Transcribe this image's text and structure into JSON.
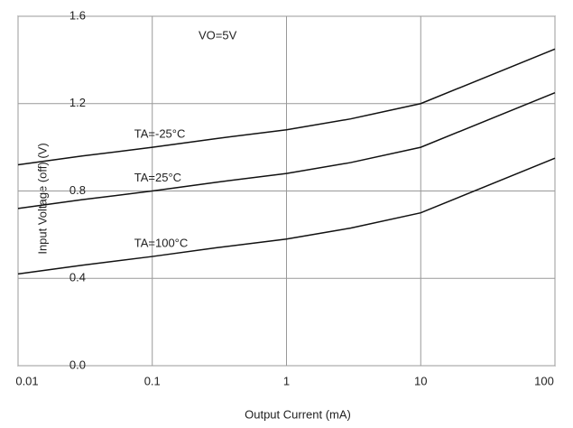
{
  "chart_data": {
    "type": "line",
    "xlabel": "Output Current (mA)",
    "ylabel": "Input Voltage (off) (V)",
    "annotations": [
      "VO=5V"
    ],
    "x": [
      0.01,
      0.03,
      0.1,
      0.3,
      1,
      3,
      10,
      100
    ],
    "series": [
      {
        "name": "TA=-25°C",
        "color": "#111111",
        "values": [
          0.92,
          0.96,
          1.0,
          1.04,
          1.08,
          1.13,
          1.2,
          1.45
        ]
      },
      {
        "name": "TA=25°C",
        "color": "#111111",
        "values": [
          0.72,
          0.76,
          0.8,
          0.84,
          0.88,
          0.93,
          1.0,
          1.25
        ]
      },
      {
        "name": "TA=100°C",
        "color": "#111111",
        "values": [
          0.42,
          0.46,
          0.5,
          0.54,
          0.58,
          0.63,
          0.7,
          0.95
        ]
      }
    ],
    "xlim": [
      0.01,
      100
    ],
    "xscale": "log",
    "xticks": [
      0.01,
      0.1,
      1,
      10,
      100
    ],
    "ylim": [
      0,
      1.6
    ],
    "yticks": [
      {
        "value": 0,
        "label": "0.0"
      },
      0.4,
      0.8,
      1.2,
      1.6
    ],
    "grid": true
  }
}
